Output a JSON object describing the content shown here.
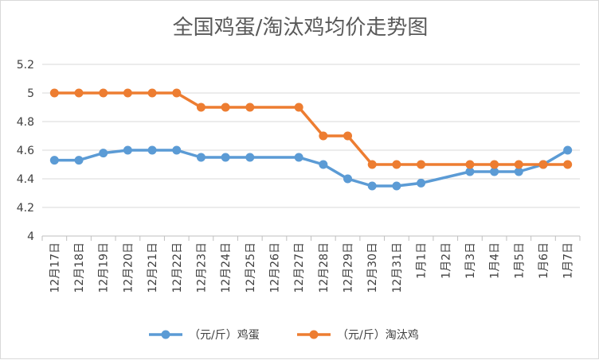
{
  "chart_data": {
    "type": "line",
    "title": "全国鸡蛋/淘汰鸡均价走势图",
    "xlabel": "",
    "ylabel": "",
    "categories": [
      "12月17日",
      "12月18日",
      "12月19日",
      "12月20日",
      "12月21日",
      "12月22日",
      "12月23日",
      "12月24日",
      "12月25日",
      "12月26日",
      "12月27日",
      "12月28日",
      "12月29日",
      "12月30日",
      "12月31日",
      "1月1日",
      "1月2日",
      "1月3日",
      "1月4日",
      "1月5日",
      "1月6日",
      "1月7日"
    ],
    "y_ticks": [
      "4",
      "4.2",
      "4.4",
      "4.6",
      "4.8",
      "5",
      "5.2"
    ],
    "ylim": [
      4,
      5.2
    ],
    "grid": "horizontal",
    "legend_position": "bottom",
    "series": [
      {
        "name": "（元/斤）鸡蛋",
        "color": "#5b9bd5",
        "values": [
          4.53,
          4.53,
          4.58,
          4.6,
          4.6,
          4.6,
          4.55,
          4.55,
          4.55,
          null,
          4.55,
          4.5,
          4.4,
          4.35,
          4.35,
          4.37,
          null,
          4.45,
          4.45,
          4.45,
          4.5,
          4.6
        ]
      },
      {
        "name": "（元/斤）淘汰鸡",
        "color": "#ed7d31",
        "values": [
          5.0,
          5.0,
          5.0,
          5.0,
          5.0,
          5.0,
          4.9,
          4.9,
          4.9,
          null,
          4.9,
          4.7,
          4.7,
          4.5,
          4.5,
          4.5,
          null,
          4.5,
          4.5,
          4.5,
          4.5,
          4.5
        ]
      }
    ]
  }
}
